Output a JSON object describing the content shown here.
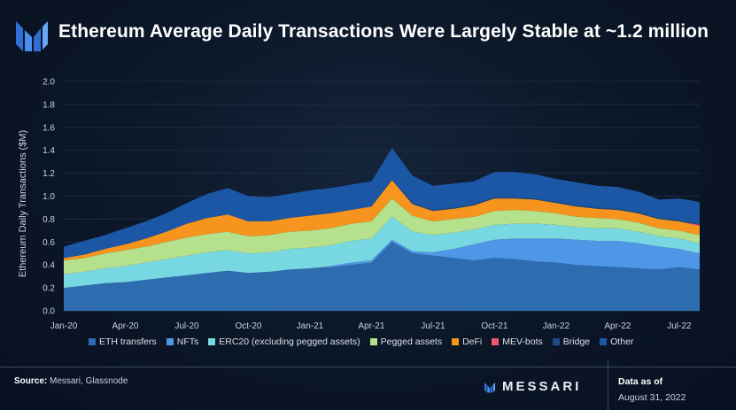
{
  "header": {
    "title": "Ethereum Average Daily Transactions Were Largely Stable at ~1.2 million"
  },
  "footer": {
    "source_label": "Source:",
    "source_text": "Messari, Glassnode",
    "brand": "MESSARI",
    "asof_label": "Data as of",
    "asof_date": "August 31, 2022"
  },
  "colors": {
    "eth_transfers": "#2e6cb0",
    "nfts": "#4f96e6",
    "erc20": "#78d8e2",
    "pegged": "#b5e08c",
    "defi": "#f7941d",
    "mev": "#f0566c",
    "bridge": "#1f4c84",
    "other": "#1c57a6"
  },
  "chart_data": {
    "type": "area",
    "stacked": true,
    "title": "Ethereum Average Daily Transactions Were Largely Stable at ~1.2 million",
    "xlabel": "",
    "ylabel": "Ethereum Daily Transactions ($M)",
    "ylim": [
      0,
      2.0
    ],
    "yticks": [
      "0.0",
      "0.2",
      "0.4",
      "0.6",
      "0.8",
      "1.0",
      "1.2",
      "1.4",
      "1.6",
      "1.8",
      "2.0"
    ],
    "xticks": [
      "Jan-20",
      "Apr-20",
      "Jul-20",
      "Oct-20",
      "Jan-21",
      "Apr-21",
      "Jul-21",
      "Oct-21",
      "Jan-22",
      "Apr-22",
      "Jul-22"
    ],
    "x": [
      "Jan-20",
      "Feb-20",
      "Mar-20",
      "Apr-20",
      "May-20",
      "Jun-20",
      "Jul-20",
      "Aug-20",
      "Sep-20",
      "Oct-20",
      "Nov-20",
      "Dec-20",
      "Jan-21",
      "Feb-21",
      "Mar-21",
      "Apr-21",
      "May-21",
      "Jun-21",
      "Jul-21",
      "Aug-21",
      "Sep-21",
      "Oct-21",
      "Nov-21",
      "Dec-21",
      "Jan-22",
      "Feb-22",
      "Mar-22",
      "Apr-22",
      "May-22",
      "Jun-22",
      "Jul-22",
      "Aug-22"
    ],
    "legend_position": "bottom",
    "series": [
      {
        "name": "ETH transfers",
        "key": "eth_transfers",
        "values": [
          0.2,
          0.22,
          0.24,
          0.25,
          0.27,
          0.29,
          0.31,
          0.33,
          0.35,
          0.33,
          0.34,
          0.36,
          0.37,
          0.38,
          0.4,
          0.42,
          0.6,
          0.5,
          0.48,
          0.46,
          0.44,
          0.46,
          0.45,
          0.43,
          0.42,
          0.4,
          0.39,
          0.38,
          0.37,
          0.36,
          0.38,
          0.36
        ]
      },
      {
        "name": "NFTs",
        "key": "nfts",
        "values": [
          0.0,
          0.0,
          0.0,
          0.0,
          0.0,
          0.0,
          0.0,
          0.0,
          0.0,
          0.0,
          0.0,
          0.0,
          0.0,
          0.01,
          0.02,
          0.02,
          0.02,
          0.02,
          0.03,
          0.08,
          0.14,
          0.16,
          0.18,
          0.2,
          0.21,
          0.22,
          0.22,
          0.23,
          0.22,
          0.2,
          0.16,
          0.14
        ]
      },
      {
        "name": "ERC20 (excluding pegged assets)",
        "key": "erc20",
        "values": [
          0.12,
          0.12,
          0.13,
          0.14,
          0.15,
          0.16,
          0.17,
          0.18,
          0.18,
          0.17,
          0.17,
          0.18,
          0.18,
          0.18,
          0.19,
          0.19,
          0.2,
          0.17,
          0.15,
          0.14,
          0.13,
          0.13,
          0.13,
          0.13,
          0.12,
          0.11,
          0.11,
          0.11,
          0.1,
          0.09,
          0.09,
          0.09
        ]
      },
      {
        "name": "Pegged assets",
        "key": "pegged",
        "values": [
          0.12,
          0.12,
          0.13,
          0.14,
          0.14,
          0.15,
          0.16,
          0.16,
          0.16,
          0.15,
          0.15,
          0.15,
          0.15,
          0.15,
          0.15,
          0.15,
          0.16,
          0.14,
          0.12,
          0.12,
          0.11,
          0.12,
          0.12,
          0.11,
          0.1,
          0.09,
          0.09,
          0.08,
          0.08,
          0.07,
          0.07,
          0.07
        ]
      },
      {
        "name": "DeFi",
        "key": "defi",
        "values": [
          0.02,
          0.03,
          0.04,
          0.05,
          0.07,
          0.09,
          0.12,
          0.14,
          0.15,
          0.13,
          0.12,
          0.12,
          0.13,
          0.13,
          0.12,
          0.13,
          0.16,
          0.1,
          0.09,
          0.09,
          0.1,
          0.11,
          0.1,
          0.1,
          0.09,
          0.09,
          0.08,
          0.08,
          0.08,
          0.08,
          0.08,
          0.08
        ]
      },
      {
        "name": "MEV-bots",
        "key": "mev",
        "values": [
          0.0,
          0.0,
          0.0,
          0.0,
          0.0,
          0.0,
          0.0,
          0.0,
          0.0,
          0.0,
          0.0,
          0.0,
          0.0,
          0.0,
          0.0,
          0.0,
          0.0,
          0.0,
          0.0,
          0.0,
          0.0,
          0.0,
          0.0,
          0.0,
          0.0,
          0.0,
          0.0,
          0.0,
          0.0,
          0.0,
          0.0,
          0.01
        ]
      },
      {
        "name": "Bridge",
        "key": "bridge",
        "values": [
          0.0,
          0.0,
          0.0,
          0.0,
          0.0,
          0.0,
          0.0,
          0.0,
          0.0,
          0.0,
          0.0,
          0.0,
          0.0,
          0.0,
          0.0,
          0.0,
          0.01,
          0.01,
          0.01,
          0.01,
          0.01,
          0.01,
          0.01,
          0.01,
          0.01,
          0.01,
          0.01,
          0.01,
          0.01,
          0.01,
          0.01,
          0.01
        ]
      },
      {
        "name": "Other",
        "key": "other",
        "values": [
          0.1,
          0.12,
          0.12,
          0.14,
          0.15,
          0.16,
          0.18,
          0.21,
          0.23,
          0.22,
          0.21,
          0.21,
          0.22,
          0.22,
          0.22,
          0.22,
          0.27,
          0.24,
          0.21,
          0.21,
          0.2,
          0.22,
          0.22,
          0.21,
          0.2,
          0.2,
          0.19,
          0.19,
          0.18,
          0.16,
          0.19,
          0.19
        ]
      }
    ]
  }
}
